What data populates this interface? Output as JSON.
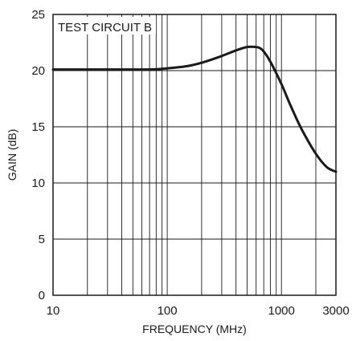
{
  "chart_data": {
    "type": "line",
    "title": "",
    "annotation": "TEST CIRCUIT B",
    "xlabel": "FREQUENCY (MHz)",
    "ylabel": "GAIN (dB)",
    "x_scale": "log",
    "xlim": [
      10,
      3000
    ],
    "ylim": [
      0,
      25
    ],
    "x_ticks": [
      10,
      100,
      1000,
      3000
    ],
    "x_tick_labels": [
      "10",
      "100",
      "1000",
      "3000"
    ],
    "y_ticks": [
      0,
      5,
      10,
      15,
      20,
      25
    ],
    "y_tick_labels": [
      "0",
      "5",
      "10",
      "15",
      "20",
      "25"
    ],
    "grid": true,
    "legend": "none",
    "line_color": "#1a1a1a",
    "series": [
      {
        "x": [
          10,
          20,
          40,
          70,
          100,
          150,
          200,
          300,
          400,
          500,
          600,
          650,
          700,
          800,
          1000,
          1200,
          1500,
          2000,
          2500,
          3000
        ],
        "y": [
          20.1,
          20.1,
          20.1,
          20.1,
          20.2,
          20.4,
          20.7,
          21.3,
          21.8,
          22.1,
          22.1,
          22.0,
          21.7,
          20.8,
          18.8,
          16.9,
          14.8,
          12.6,
          11.4,
          11.0
        ]
      }
    ]
  }
}
